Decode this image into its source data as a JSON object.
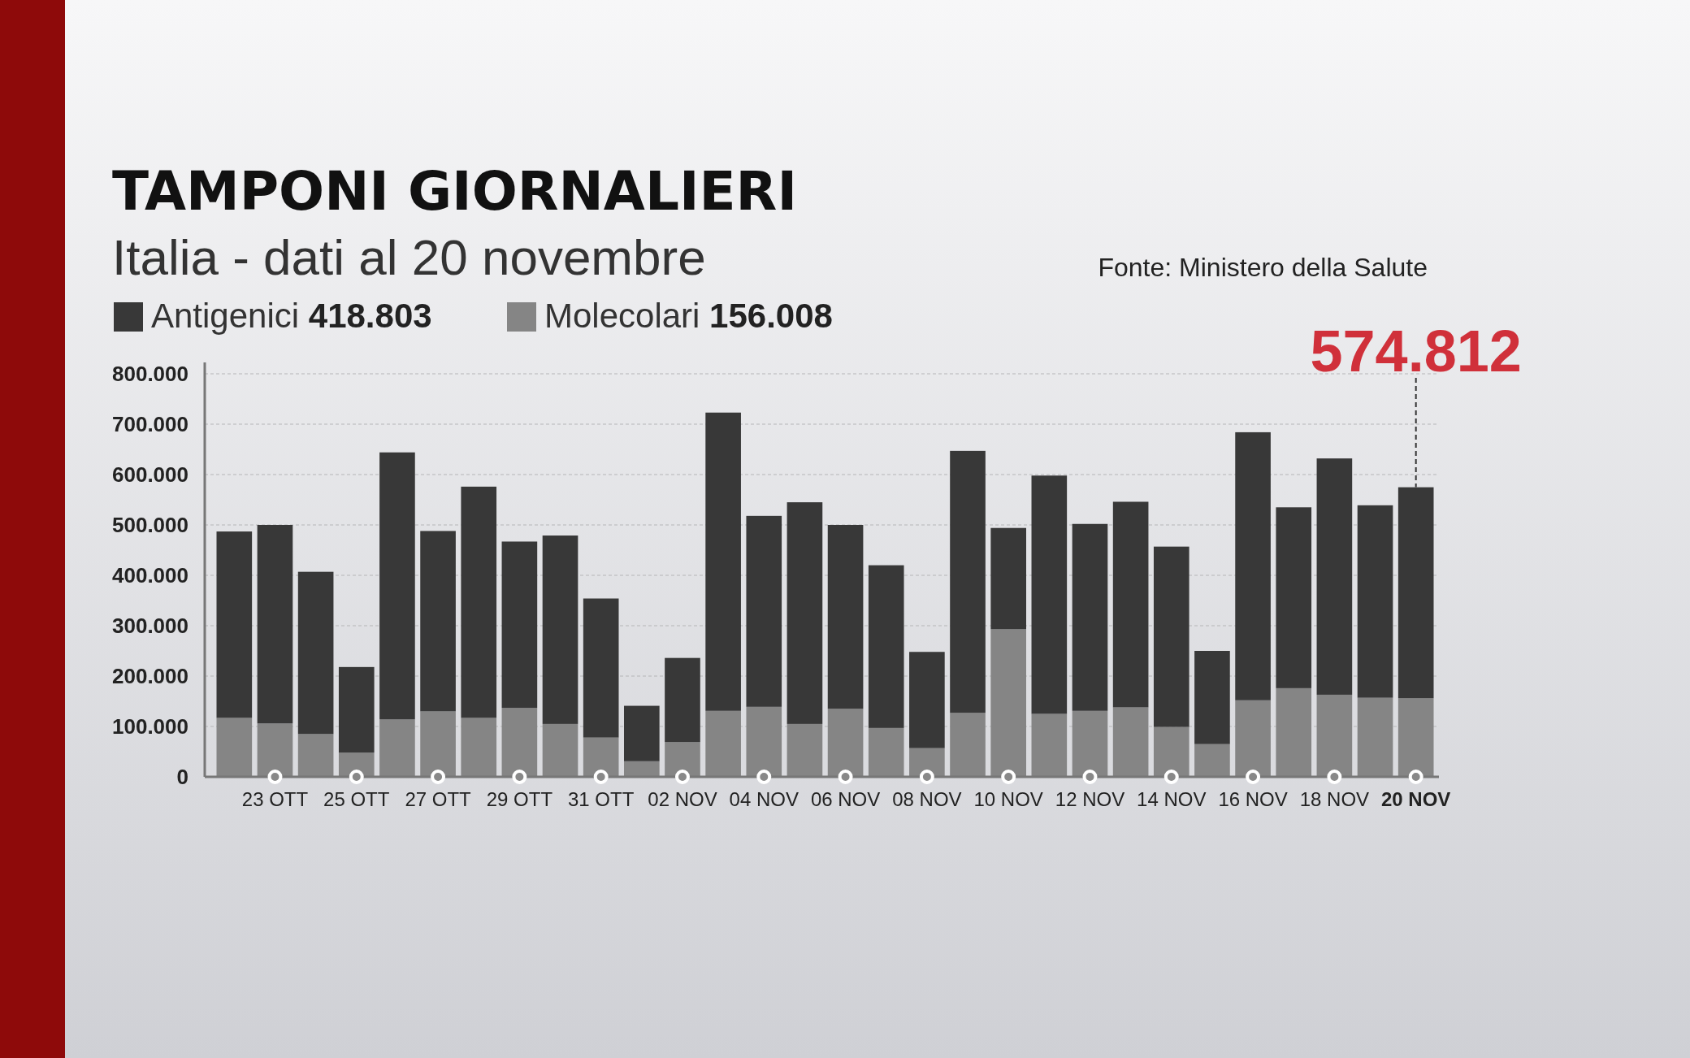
{
  "chart_data": {
    "type": "bar",
    "stacked": true,
    "title": "TAMPONI GIORNALIERI",
    "subtitle": "Italia - dati al 20 novembre",
    "categories": [
      null,
      "23 OTT",
      null,
      "25 OTT",
      null,
      "27 OTT",
      null,
      "29 OTT",
      null,
      "31 OTT",
      null,
      "02 NOV",
      null,
      "04 NOV",
      null,
      "06 NOV",
      null,
      "08 NOV",
      null,
      "10 NOV",
      null,
      "12 NOV",
      null,
      "14 NOV",
      null,
      "16 NOV",
      null,
      "18 NOV",
      null,
      "20 NOV"
    ],
    "series": [
      {
        "name": "Molecolari",
        "color": "#858585",
        "values": [
          117000,
          106000,
          85000,
          48000,
          114000,
          130000,
          117000,
          137000,
          105000,
          78000,
          31000,
          69000,
          131000,
          139000,
          105000,
          135000,
          97000,
          57000,
          127000,
          293000,
          125000,
          131000,
          138000,
          99000,
          65000,
          152000,
          176000,
          163000,
          157000,
          156008
        ]
      },
      {
        "name": "Antigenici",
        "color": "#383838",
        "values": [
          370000,
          394000,
          322000,
          170000,
          530000,
          358000,
          459000,
          330000,
          374000,
          276000,
          110000,
          167000,
          592000,
          379000,
          440000,
          365000,
          323000,
          191000,
          520000,
          201000,
          473000,
          371000,
          408000,
          358000,
          185000,
          532000,
          359000,
          469000,
          382000,
          418803
        ]
      }
    ],
    "ylim": [
      0,
      800000
    ],
    "yticks": [
      0,
      {
        "value": 100000,
        "label": "100.000"
      },
      {
        "value": 200000,
        "label": "200.000"
      },
      {
        "value": 300000,
        "label": "300.000"
      },
      {
        "value": 400000,
        "label": "400.000"
      },
      {
        "value": 500000,
        "label": "500.000"
      },
      {
        "value": 600000,
        "label": "600.000"
      },
      {
        "value": 700000,
        "label": "700.000"
      },
      {
        "value": 800000,
        "label": "800.000"
      }
    ],
    "grid": "y",
    "legend": "top left",
    "annotations": [
      "Fonte: Ministero della Salute",
      "418.803",
      "156.008",
      {
        "text": "574.812",
        "x": "20 NOV",
        "y": 574812
      }
    ]
  }
}
